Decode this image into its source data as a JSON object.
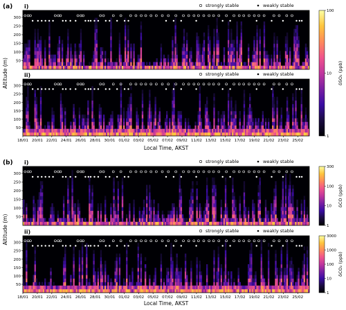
{
  "chart_data": [
    {
      "type": "heatmap",
      "figure_label": "(a)",
      "xlabel": "Local Time, AKST",
      "ylabel": "Altitude (m)",
      "xticks": [
        "18/01",
        "20/01",
        "22/01",
        "24/01",
        "26/01",
        "28/01",
        "30/01",
        "01/02",
        "03/02",
        "05/02",
        "07/02",
        "09/02",
        "11/02",
        "13/02",
        "15/02",
        "17/02",
        "19/02",
        "21/02",
        "23/02",
        "25/02"
      ],
      "yticks": [
        50,
        100,
        150,
        200,
        250,
        300
      ],
      "ylim": [
        0,
        340
      ],
      "legend": {
        "strong": "strongly stable",
        "weak": "weakly stable"
      },
      "colorbar": {
        "label": "δSO₂ (ppb)",
        "scale": "log",
        "range": [
          1,
          100
        ],
        "ticks": [
          "100",
          "10",
          "1"
        ]
      },
      "panels": [
        {
          "name": "i)",
          "strong_days": [
            0.3,
            0.7,
            1.0,
            4.3,
            4.7,
            5.0,
            7.3,
            7.7,
            8.0,
            10.3,
            10.7,
            12.0,
            13.0,
            14.3,
            15.0,
            15.7,
            16.3,
            17.0,
            17.7,
            18.5,
            19.3,
            20.3,
            21.3,
            22.0,
            22.7,
            23.3,
            24.0,
            24.7,
            25.3,
            26.0,
            27.0,
            28.0,
            28.7,
            29.3,
            30.0,
            30.7,
            31.3,
            32.0,
            33.3,
            34.0,
            35.0,
            35.7
          ],
          "weak_days": [
            1.3,
            2.0,
            2.5,
            3.0,
            3.5,
            4.0,
            5.3,
            5.7,
            6.3,
            7.0,
            8.3,
            8.7,
            9.0,
            9.5,
            10.0,
            11.0,
            11.5,
            12.5,
            13.5,
            14.0,
            19.0,
            20.0,
            21.0,
            23.0,
            26.5,
            27.5,
            31.0,
            33.0,
            34.5,
            36.3,
            36.7,
            37.0
          ]
        },
        {
          "name": "ii)",
          "strong_days": [
            0.3,
            0.7,
            1.0,
            4.3,
            4.7,
            5.0,
            7.3,
            7.7,
            8.0,
            10.3,
            10.7,
            12.0,
            13.0,
            14.3,
            15.0,
            15.7,
            16.3,
            17.0,
            17.7,
            18.5,
            19.3,
            20.3,
            21.3,
            22.0,
            22.7,
            23.3,
            24.0,
            24.7,
            25.3,
            26.0,
            27.0,
            28.0,
            28.7,
            29.3,
            30.0,
            30.7,
            31.3,
            32.0,
            33.3,
            34.0,
            35.0,
            35.7
          ],
          "weak_days": [
            1.3,
            2.0,
            2.5,
            3.0,
            3.5,
            4.0,
            5.3,
            5.7,
            6.3,
            7.0,
            8.3,
            8.7,
            9.0,
            9.5,
            10.0,
            11.0,
            11.5,
            12.5,
            13.5,
            14.0,
            19.0,
            20.0,
            21.0,
            23.0,
            26.5,
            27.5,
            31.0,
            33.0,
            34.5,
            36.3,
            36.7,
            37.0
          ]
        }
      ]
    },
    {
      "type": "heatmap",
      "figure_label": "(b)",
      "xlabel": "Local Time, AKST",
      "ylabel": "Altitude (m)",
      "xticks": [
        "18/01",
        "20/01",
        "22/01",
        "24/01",
        "26/01",
        "28/01",
        "30/01",
        "01/02",
        "03/02",
        "05/02",
        "07/02",
        "09/02",
        "11/02",
        "13/02",
        "15/02",
        "17/02",
        "19/02",
        "21/02",
        "23/02",
        "25/02"
      ],
      "yticks": [
        50,
        100,
        150,
        200,
        250,
        300
      ],
      "ylim": [
        0,
        340
      ],
      "legend": {
        "strong": "strongly stable",
        "weak": "weakly stable"
      },
      "colorbars": [
        {
          "label": "δCO (ppb)",
          "scale": "log",
          "range": [
            1,
            300
          ],
          "ticks": [
            "300",
            "100",
            "10",
            "1"
          ]
        },
        {
          "label": "δCO₂ (ppb)",
          "scale": "log",
          "range": [
            1,
            3000
          ],
          "ticks": [
            "3000",
            "1000",
            "100",
            "10",
            "1"
          ]
        }
      ],
      "panels": [
        {
          "name": "i)",
          "strong_days": [
            0.3,
            0.7,
            1.0,
            4.3,
            4.7,
            5.0,
            7.3,
            7.7,
            8.0,
            10.3,
            10.7,
            12.0,
            13.0,
            14.3,
            15.0,
            15.7,
            16.3,
            17.0,
            17.7,
            18.5,
            19.3,
            20.3,
            21.3,
            22.0,
            22.7,
            23.3,
            24.0,
            24.7,
            25.3,
            26.0,
            27.0,
            28.0,
            28.7,
            29.3,
            30.0,
            30.7,
            31.3,
            32.0,
            33.3,
            34.0,
            35.0,
            35.7
          ],
          "weak_days": [
            1.3,
            2.0,
            2.5,
            3.0,
            3.5,
            4.0,
            5.3,
            5.7,
            6.3,
            7.0,
            8.3,
            8.7,
            9.0,
            9.5,
            10.0,
            11.0,
            11.5,
            12.5,
            13.5,
            14.0,
            19.0,
            20.0,
            21.0,
            23.0,
            26.5,
            27.5,
            31.0,
            33.0,
            34.5,
            36.3,
            36.7,
            37.0
          ]
        },
        {
          "name": "ii)",
          "strong_days": [
            0.3,
            0.7,
            1.0,
            4.3,
            4.7,
            5.0,
            7.3,
            7.7,
            8.0,
            10.3,
            10.7,
            12.0,
            13.0,
            14.3,
            15.0,
            15.7,
            16.3,
            17.0,
            17.7,
            18.5,
            19.3,
            20.3,
            21.3,
            22.0,
            22.7,
            23.3,
            24.0,
            24.7,
            25.3,
            26.0,
            27.0,
            28.0,
            28.7,
            29.3,
            30.0,
            30.7,
            31.3,
            32.0,
            33.3,
            34.0,
            35.0,
            35.7
          ],
          "weak_days": [
            1.3,
            2.0,
            2.5,
            3.0,
            3.5,
            4.0,
            5.3,
            5.7,
            6.3,
            7.0,
            8.3,
            8.7,
            9.0,
            9.5,
            10.0,
            11.0,
            11.5,
            12.5,
            13.5,
            14.0,
            19.0,
            20.0,
            21.0,
            23.0,
            26.5,
            27.5,
            31.0,
            33.0,
            34.5,
            36.3,
            36.7,
            37.0
          ]
        }
      ]
    }
  ],
  "colormap_stops": [
    "#000004",
    "#1b0c41",
    "#3a0ca3",
    "#7a1fa2",
    "#c0369d",
    "#f0548c",
    "#ff8a5b",
    "#ffc53d",
    "#fcffa4"
  ]
}
